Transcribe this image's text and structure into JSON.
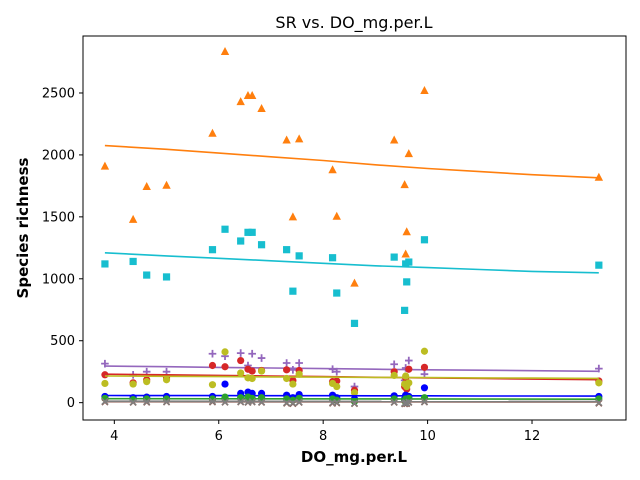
{
  "chart_data": {
    "type": "scatter",
    "title": "SR vs. DO_mg.per.L",
    "xlabel": "DO_mg.per.L",
    "ylabel": "Species richness",
    "xlim": [
      3.4,
      13.8
    ],
    "ylim": [
      -140,
      2960
    ],
    "xticks": [
      4,
      6,
      8,
      10,
      12
    ],
    "yticks": [
      0,
      500,
      1000,
      1500,
      2000,
      2500
    ],
    "grid": false,
    "legend": "none",
    "series": [
      {
        "color": "#ff7f0e",
        "marker": "triangle",
        "points": [
          [
            3.82,
            1910
          ],
          [
            4.36,
            1480
          ],
          [
            4.62,
            1745
          ],
          [
            5.0,
            1755
          ],
          [
            5.88,
            2175
          ],
          [
            6.12,
            2835
          ],
          [
            6.42,
            2430
          ],
          [
            6.56,
            2480
          ],
          [
            6.64,
            2480
          ],
          [
            6.82,
            2375
          ],
          [
            7.3,
            2120
          ],
          [
            7.42,
            1500
          ],
          [
            7.54,
            2130
          ],
          [
            8.18,
            1880
          ],
          [
            8.26,
            1505
          ],
          [
            8.6,
            965
          ],
          [
            9.36,
            2120
          ],
          [
            9.56,
            1760
          ],
          [
            9.58,
            1200
          ],
          [
            9.6,
            1380
          ],
          [
            9.64,
            2010
          ],
          [
            9.94,
            2520
          ],
          [
            13.28,
            1820
          ]
        ],
        "trend": [
          [
            3.82,
            2075
          ],
          [
            5.0,
            2045
          ],
          [
            6.0,
            2015
          ],
          [
            7.0,
            1985
          ],
          [
            8.0,
            1955
          ],
          [
            9.0,
            1920
          ],
          [
            10.0,
            1890
          ],
          [
            11.0,
            1865
          ],
          [
            12.0,
            1840
          ],
          [
            13.28,
            1815
          ]
        ]
      },
      {
        "color": "#17becf",
        "marker": "square",
        "points": [
          [
            3.82,
            1120
          ],
          [
            4.36,
            1140
          ],
          [
            4.62,
            1030
          ],
          [
            5.0,
            1015
          ],
          [
            5.88,
            1235
          ],
          [
            6.12,
            1400
          ],
          [
            6.42,
            1305
          ],
          [
            6.56,
            1375
          ],
          [
            6.64,
            1375
          ],
          [
            6.82,
            1275
          ],
          [
            7.3,
            1235
          ],
          [
            7.42,
            900
          ],
          [
            7.54,
            1185
          ],
          [
            8.18,
            1170
          ],
          [
            8.26,
            885
          ],
          [
            8.6,
            640
          ],
          [
            9.36,
            1175
          ],
          [
            9.56,
            745
          ],
          [
            9.58,
            1120
          ],
          [
            9.6,
            975
          ],
          [
            9.64,
            1135
          ],
          [
            9.94,
            1315
          ],
          [
            13.28,
            1110
          ]
        ],
        "trend": [
          [
            3.82,
            1210
          ],
          [
            5.0,
            1185
          ],
          [
            6.0,
            1165
          ],
          [
            7.0,
            1145
          ],
          [
            8.0,
            1125
          ],
          [
            9.0,
            1105
          ],
          [
            10.0,
            1090
          ],
          [
            11.0,
            1075
          ],
          [
            12.0,
            1060
          ],
          [
            13.28,
            1048
          ]
        ]
      },
      {
        "color": "#9467bd",
        "marker": "plus",
        "points": [
          [
            3.82,
            315
          ],
          [
            4.36,
            225
          ],
          [
            4.62,
            250
          ],
          [
            5.0,
            250
          ],
          [
            5.88,
            395
          ],
          [
            6.12,
            375
          ],
          [
            6.42,
            400
          ],
          [
            6.56,
            300
          ],
          [
            6.64,
            395
          ],
          [
            6.82,
            360
          ],
          [
            7.3,
            320
          ],
          [
            7.42,
            265
          ],
          [
            7.54,
            320
          ],
          [
            8.18,
            270
          ],
          [
            8.26,
            250
          ],
          [
            8.6,
            130
          ],
          [
            9.36,
            310
          ],
          [
            9.56,
            180
          ],
          [
            9.58,
            280
          ],
          [
            9.6,
            140
          ],
          [
            9.64,
            340
          ],
          [
            9.94,
            230
          ],
          [
            13.28,
            275
          ]
        ],
        "trend": [
          [
            3.82,
            295
          ],
          [
            5.0,
            290
          ],
          [
            6.0,
            285
          ],
          [
            7.0,
            280
          ],
          [
            8.0,
            275
          ],
          [
            9.0,
            270
          ],
          [
            10.0,
            265
          ],
          [
            11.0,
            262
          ],
          [
            12.0,
            258
          ],
          [
            13.28,
            253
          ]
        ]
      },
      {
        "color": "#d62728",
        "marker": "circle",
        "points": [
          [
            3.82,
            225
          ],
          [
            4.36,
            160
          ],
          [
            4.62,
            185
          ],
          [
            5.0,
            200
          ],
          [
            5.88,
            300
          ],
          [
            6.12,
            290
          ],
          [
            6.42,
            340
          ],
          [
            6.56,
            270
          ],
          [
            6.64,
            255
          ],
          [
            6.82,
            260
          ],
          [
            7.3,
            265
          ],
          [
            7.42,
            180
          ],
          [
            7.54,
            260
          ],
          [
            8.18,
            170
          ],
          [
            8.26,
            175
          ],
          [
            8.6,
            100
          ],
          [
            9.36,
            250
          ],
          [
            9.56,
            130
          ],
          [
            9.58,
            200
          ],
          [
            9.6,
            110
          ],
          [
            9.64,
            270
          ],
          [
            9.94,
            285
          ],
          [
            13.28,
            175
          ]
        ],
        "trend": [
          [
            3.82,
            230
          ],
          [
            5.0,
            225
          ],
          [
            6.0,
            220
          ],
          [
            7.0,
            215
          ],
          [
            8.0,
            210
          ],
          [
            9.0,
            205
          ],
          [
            10.0,
            200
          ],
          [
            11.0,
            195
          ],
          [
            12.0,
            190
          ],
          [
            13.28,
            185
          ]
        ]
      },
      {
        "color": "#bcbd22",
        "marker": "circle",
        "points": [
          [
            3.82,
            155
          ],
          [
            4.36,
            150
          ],
          [
            4.62,
            170
          ],
          [
            5.0,
            185
          ],
          [
            5.88,
            145
          ],
          [
            6.12,
            410
          ],
          [
            6.42,
            240
          ],
          [
            6.56,
            200
          ],
          [
            6.64,
            195
          ],
          [
            6.82,
            255
          ],
          [
            7.3,
            195
          ],
          [
            7.42,
            150
          ],
          [
            7.54,
            230
          ],
          [
            8.18,
            155
          ],
          [
            8.26,
            130
          ],
          [
            8.6,
            80
          ],
          [
            9.36,
            220
          ],
          [
            9.56,
            150
          ],
          [
            9.58,
            215
          ],
          [
            9.6,
            130
          ],
          [
            9.64,
            160
          ],
          [
            9.94,
            415
          ],
          [
            13.28,
            160
          ]
        ],
        "trend": [
          [
            3.82,
            215
          ],
          [
            5.0,
            213
          ],
          [
            6.0,
            210
          ],
          [
            7.0,
            208
          ],
          [
            8.0,
            206
          ],
          [
            9.0,
            204
          ],
          [
            10.0,
            202
          ],
          [
            11.0,
            200
          ],
          [
            12.0,
            198
          ],
          [
            13.28,
            196
          ]
        ]
      },
      {
        "color": "#0000ff",
        "marker": "circle",
        "points": [
          [
            3.82,
            50
          ],
          [
            4.36,
            40
          ],
          [
            4.62,
            45
          ],
          [
            5.0,
            50
          ],
          [
            5.88,
            50
          ],
          [
            6.12,
            150
          ],
          [
            6.42,
            75
          ],
          [
            6.56,
            85
          ],
          [
            6.64,
            75
          ],
          [
            6.82,
            75
          ],
          [
            7.3,
            60
          ],
          [
            7.42,
            40
          ],
          [
            7.54,
            65
          ],
          [
            8.18,
            60
          ],
          [
            8.26,
            40
          ],
          [
            8.6,
            30
          ],
          [
            9.36,
            55
          ],
          [
            9.56,
            30
          ],
          [
            9.58,
            60
          ],
          [
            9.6,
            40
          ],
          [
            9.64,
            50
          ],
          [
            9.94,
            120
          ],
          [
            13.28,
            50
          ]
        ],
        "trend": [
          [
            3.82,
            58
          ],
          [
            5.0,
            57
          ],
          [
            6.0,
            57
          ],
          [
            7.0,
            56
          ],
          [
            8.0,
            56
          ],
          [
            9.0,
            55
          ],
          [
            10.0,
            55
          ],
          [
            11.0,
            54
          ],
          [
            12.0,
            54
          ],
          [
            13.28,
            53
          ]
        ]
      },
      {
        "color": "#2ca02c",
        "marker": "circle",
        "points": [
          [
            3.82,
            35
          ],
          [
            4.36,
            25
          ],
          [
            4.62,
            30
          ],
          [
            5.0,
            30
          ],
          [
            5.88,
            30
          ],
          [
            6.12,
            45
          ],
          [
            6.42,
            40
          ],
          [
            6.56,
            45
          ],
          [
            6.64,
            35
          ],
          [
            6.82,
            40
          ],
          [
            7.3,
            30
          ],
          [
            7.42,
            20
          ],
          [
            7.54,
            35
          ],
          [
            8.18,
            30
          ],
          [
            8.26,
            20
          ],
          [
            8.6,
            10
          ],
          [
            9.36,
            30
          ],
          [
            9.56,
            15
          ],
          [
            9.58,
            30
          ],
          [
            9.6,
            15
          ],
          [
            9.64,
            35
          ],
          [
            9.94,
            40
          ],
          [
            13.28,
            30
          ]
        ],
        "trend": [
          [
            3.82,
            32
          ],
          [
            13.28,
            28
          ]
        ]
      },
      {
        "color": "#8c564b",
        "marker": "x",
        "points": [
          [
            3.82,
            5
          ],
          [
            4.36,
            2
          ],
          [
            4.62,
            3
          ],
          [
            5.0,
            5
          ],
          [
            5.88,
            5
          ],
          [
            6.12,
            3
          ],
          [
            6.42,
            5
          ],
          [
            6.56,
            2
          ],
          [
            6.64,
            5
          ],
          [
            6.82,
            2
          ],
          [
            7.3,
            -5
          ],
          [
            7.42,
            -8
          ],
          [
            7.54,
            2
          ],
          [
            8.18,
            -5
          ],
          [
            8.26,
            -3
          ],
          [
            8.6,
            -8
          ],
          [
            9.36,
            2
          ],
          [
            9.56,
            -10
          ],
          [
            9.58,
            -5
          ],
          [
            9.6,
            -8
          ],
          [
            9.64,
            2
          ],
          [
            9.94,
            5
          ],
          [
            13.28,
            -5
          ]
        ],
        "trend": [
          [
            3.82,
            8
          ],
          [
            13.28,
            5
          ]
        ]
      },
      {
        "color": "#7f7f7f",
        "marker": "x",
        "points": [
          [
            3.82,
            10
          ],
          [
            4.36,
            5
          ],
          [
            4.62,
            8
          ],
          [
            5.0,
            8
          ],
          [
            5.88,
            10
          ],
          [
            6.12,
            5
          ],
          [
            6.42,
            8
          ],
          [
            6.56,
            5
          ],
          [
            6.64,
            8
          ],
          [
            6.82,
            5
          ],
          [
            7.3,
            0
          ],
          [
            7.42,
            -3
          ],
          [
            7.54,
            5
          ],
          [
            8.18,
            0
          ],
          [
            8.26,
            2
          ],
          [
            8.6,
            -5
          ],
          [
            9.36,
            5
          ],
          [
            9.56,
            -5
          ],
          [
            9.58,
            0
          ],
          [
            9.6,
            -3
          ],
          [
            9.64,
            5
          ],
          [
            9.94,
            8
          ],
          [
            13.28,
            0
          ]
        ],
        "trend": [
          [
            3.82,
            12
          ],
          [
            13.28,
            9
          ]
        ]
      }
    ]
  }
}
